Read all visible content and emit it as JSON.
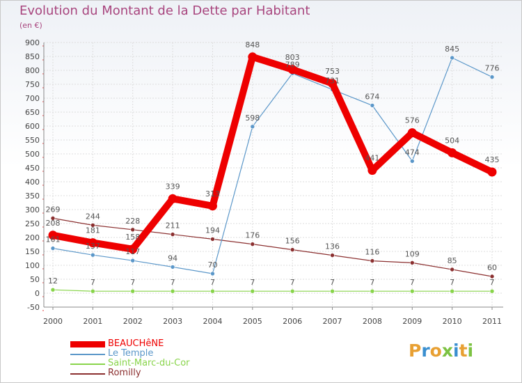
{
  "title": "Evolution du Montant de la Dette par Habitant",
  "subtitle": "(en €)",
  "brand": "Proxiti",
  "chart_data": {
    "type": "line",
    "title": "Evolution du Montant de la Dette par Habitant",
    "ylabel": "(en €)",
    "xlabel": "",
    "ylim": [
      -50,
      900
    ],
    "yticks": [
      -50,
      0,
      50,
      100,
      150,
      200,
      250,
      300,
      350,
      400,
      450,
      500,
      550,
      600,
      650,
      700,
      750,
      800,
      850,
      900
    ],
    "categories": [
      "2000",
      "2001",
      "2002",
      "2003",
      "2004",
      "2005",
      "2006",
      "2007",
      "2008",
      "2009",
      "2010",
      "2011"
    ],
    "grid": true,
    "legend_position": "bottom-left",
    "series": [
      {
        "name": "Romilly",
        "color": "#8b2f2f",
        "values": [
          269,
          244,
          228,
          211,
          194,
          176,
          156,
          136,
          116,
          109,
          85,
          60
        ]
      },
      {
        "name": "Saint-Marc-du-Cor",
        "color": "#88d44a",
        "values": [
          12,
          7,
          7,
          7,
          7,
          7,
          7,
          7,
          7,
          7,
          7,
          7
        ]
      },
      {
        "name": "Le Temple",
        "color": "#5b97c9",
        "values": [
          161,
          137,
          117,
          94,
          70,
          598,
          789,
          731,
          674,
          474,
          845,
          776
        ]
      },
      {
        "name": "BEAUCHêNE",
        "color": "#ee0000",
        "values": [
          208,
          181,
          158,
          339,
          313,
          848,
          803,
          753,
          441,
          576,
          504,
          435
        ]
      }
    ]
  },
  "legend": [
    {
      "name": "BEAUCHêNE",
      "color": "#ee0000"
    },
    {
      "name": "Le Temple",
      "color": "#5b97c9"
    },
    {
      "name": "Saint-Marc-du-Cor",
      "color": "#88d44a"
    },
    {
      "name": "Romilly",
      "color": "#8b2f2f"
    }
  ],
  "brand_colors": [
    "#e8a033",
    "#3a8fd0",
    "#e8a033",
    "#7cc242",
    "#3a8fd0",
    "#e8a033",
    "#7cc242"
  ]
}
